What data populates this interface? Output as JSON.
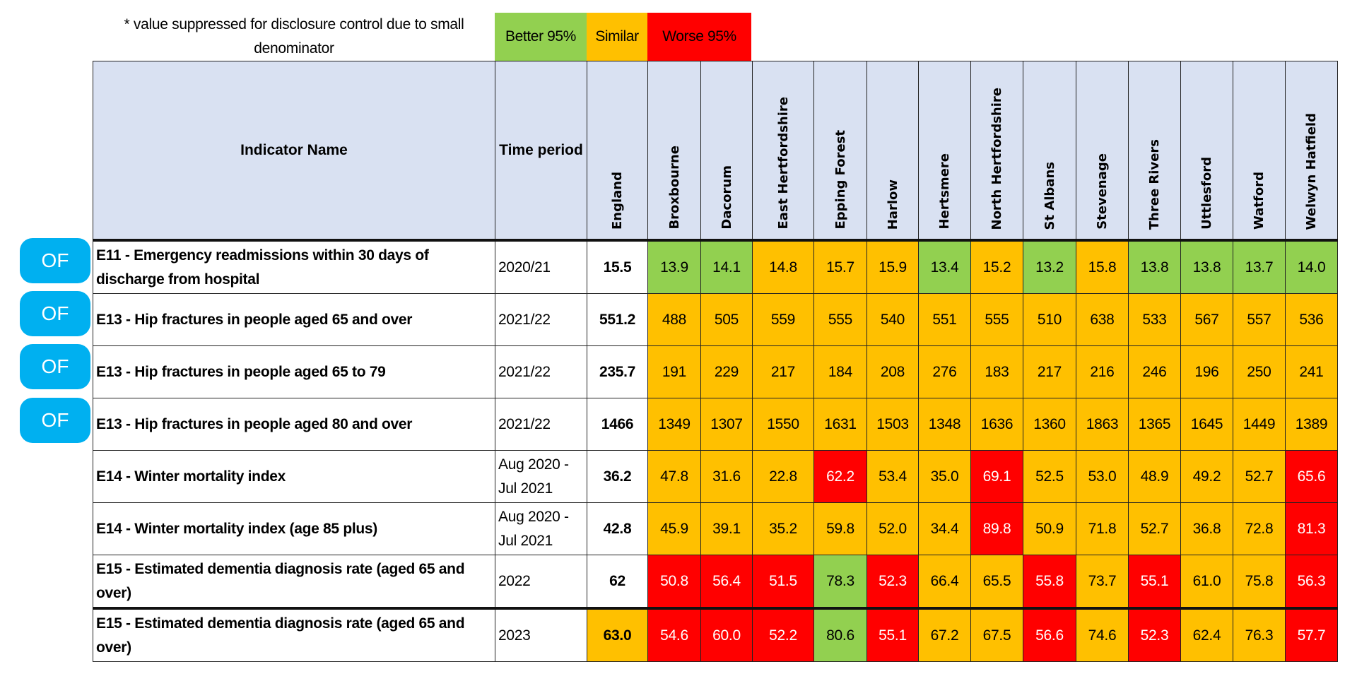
{
  "legend": {
    "note": "* value suppressed for disclosure control due to small denominator",
    "better": "Better 95%",
    "similar": "Similar",
    "worse": "Worse 95%",
    "colors": {
      "better": "#92D050",
      "similar": "#FFC000",
      "worse": "#FF0000",
      "header": "#D9E1F2",
      "badge": "#00B0F0"
    }
  },
  "badge_label": "OF",
  "header": {
    "indicator": "Indicator Name",
    "time_period": "Time period",
    "england": "England",
    "areas": [
      "Broxbourne",
      "Dacorum",
      "East Hertfordshire",
      "Epping Forest",
      "Harlow",
      "Hertsmere",
      "North Hertfordshire",
      "St Albans",
      "Stevenage",
      "Three Rivers",
      "Uttlesford",
      "Watford",
      "Welwyn Hatfield"
    ]
  },
  "rows": [
    {
      "badge": true,
      "name": "E11 - Emergency readmissions within 30 days of discharge from hospital",
      "period": "2020/21",
      "england": "15.5",
      "england_rag": "w",
      "values": [
        "13.9",
        "14.1",
        "14.8",
        "15.7",
        "15.9",
        "13.4",
        "15.2",
        "13.2",
        "15.8",
        "13.8",
        "13.8",
        "13.7",
        "14.0"
      ],
      "rag": [
        "g",
        "g",
        "a",
        "a",
        "a",
        "g",
        "a",
        "g",
        "a",
        "g",
        "g",
        "g",
        "g"
      ]
    },
    {
      "badge": true,
      "name": "E13 - Hip fractures in people aged 65 and over",
      "period": "2021/22",
      "england": "551.2",
      "england_rag": "w",
      "values": [
        "488",
        "505",
        "559",
        "555",
        "540",
        "551",
        "555",
        "510",
        "638",
        "533",
        "567",
        "557",
        "536"
      ],
      "rag": [
        "a",
        "a",
        "a",
        "a",
        "a",
        "a",
        "a",
        "a",
        "a",
        "a",
        "a",
        "a",
        "a"
      ]
    },
    {
      "badge": true,
      "name": "E13 - Hip fractures in people aged 65 to 79",
      "period": "2021/22",
      "england": "235.7",
      "england_rag": "w",
      "values": [
        "191",
        "229",
        "217",
        "184",
        "208",
        "276",
        "183",
        "217",
        "216",
        "246",
        "196",
        "250",
        "241"
      ],
      "rag": [
        "a",
        "a",
        "a",
        "a",
        "a",
        "a",
        "a",
        "a",
        "a",
        "a",
        "a",
        "a",
        "a"
      ]
    },
    {
      "badge": true,
      "name": "E13 - Hip fractures in people aged 80 and over",
      "period": "2021/22",
      "england": "1466",
      "england_rag": "w",
      "values": [
        "1349",
        "1307",
        "1550",
        "1631",
        "1503",
        "1348",
        "1636",
        "1360",
        "1863",
        "1365",
        "1645",
        "1449",
        "1389"
      ],
      "rag": [
        "a",
        "a",
        "a",
        "a",
        "a",
        "a",
        "a",
        "a",
        "a",
        "a",
        "a",
        "a",
        "a"
      ]
    },
    {
      "badge": false,
      "name": "E14 - Winter mortality index",
      "period": "Aug 2020 - Jul 2021",
      "england": "36.2",
      "england_rag": "w",
      "values": [
        "47.8",
        "31.6",
        "22.8",
        "62.2",
        "53.4",
        "35.0",
        "69.1",
        "52.5",
        "53.0",
        "48.9",
        "49.2",
        "52.7",
        "65.6"
      ],
      "rag": [
        "a",
        "a",
        "a",
        "r",
        "a",
        "a",
        "r",
        "a",
        "a",
        "a",
        "a",
        "a",
        "r"
      ]
    },
    {
      "badge": false,
      "name": "E14 - Winter mortality index (age 85 plus)",
      "period": "Aug 2020 - Jul 2021",
      "england": "42.8",
      "england_rag": "w",
      "values": [
        "45.9",
        "39.1",
        "35.2",
        "59.8",
        "52.0",
        "34.4",
        "89.8",
        "50.9",
        "71.8",
        "52.7",
        "36.8",
        "72.8",
        "81.3"
      ],
      "rag": [
        "a",
        "a",
        "a",
        "a",
        "a",
        "a",
        "r",
        "a",
        "a",
        "a",
        "a",
        "a",
        "r"
      ]
    },
    {
      "badge": false,
      "name": "E15 - Estimated dementia diagnosis rate (aged 65 and over)",
      "period": "2022",
      "england": "62",
      "england_rag": "w",
      "values": [
        "50.8",
        "56.4",
        "51.5",
        "78.3",
        "52.3",
        "66.4",
        "65.5",
        "55.8",
        "73.7",
        "55.1",
        "61.0",
        "75.8",
        "56.3"
      ],
      "rag": [
        "r",
        "r",
        "r",
        "g",
        "r",
        "a",
        "a",
        "r",
        "a",
        "r",
        "a",
        "a",
        "r"
      ]
    },
    {
      "badge": false,
      "name": "E15 - Estimated dementia diagnosis rate (aged 65 and over)",
      "period": "2023",
      "england": "63.0",
      "england_rag": "a",
      "values": [
        "54.6",
        "60.0",
        "52.2",
        "80.6",
        "55.1",
        "67.2",
        "67.5",
        "56.6",
        "74.6",
        "52.3",
        "62.4",
        "76.3",
        "57.7"
      ],
      "rag": [
        "r",
        "r",
        "r",
        "g",
        "r",
        "a",
        "a",
        "r",
        "a",
        "r",
        "a",
        "a",
        "r"
      ]
    }
  ]
}
